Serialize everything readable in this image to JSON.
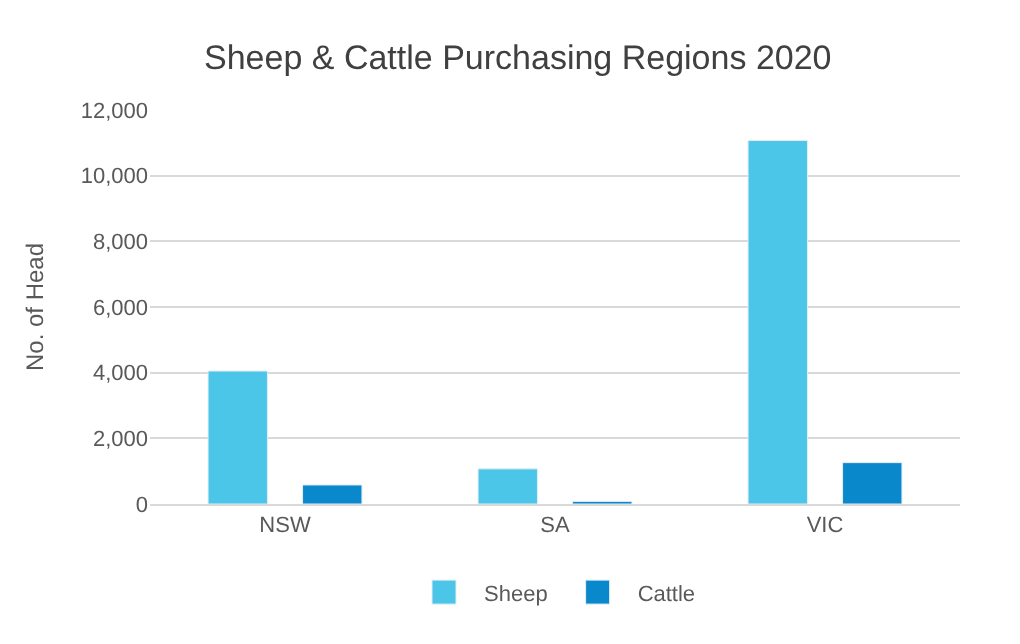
{
  "chart_data": {
    "type": "bar",
    "title": "Sheep & Cattle Purchasing Regions 2020",
    "ylabel": "No. of Head",
    "categories": [
      "NSW",
      "SA",
      "VIC"
    ],
    "series": [
      {
        "name": "Sheep",
        "color": "#4bc5e8",
        "values": [
          4050,
          1070,
          11070
        ]
      },
      {
        "name": "Cattle",
        "color": "#0a88cc",
        "values": [
          580,
          80,
          1260
        ]
      }
    ],
    "ylim": [
      0,
      12000
    ],
    "yticks": [
      {
        "value": 0,
        "label": "0"
      },
      {
        "value": 2000,
        "label": "2,000"
      },
      {
        "value": 4000,
        "label": "4,000"
      },
      {
        "value": 6000,
        "label": "6,000"
      },
      {
        "value": 8000,
        "label": "8,000"
      },
      {
        "value": 10000,
        "label": "10,000"
      },
      {
        "value": 12000,
        "label": "12,000"
      }
    ],
    "grid": "y",
    "legend": "bottom"
  }
}
